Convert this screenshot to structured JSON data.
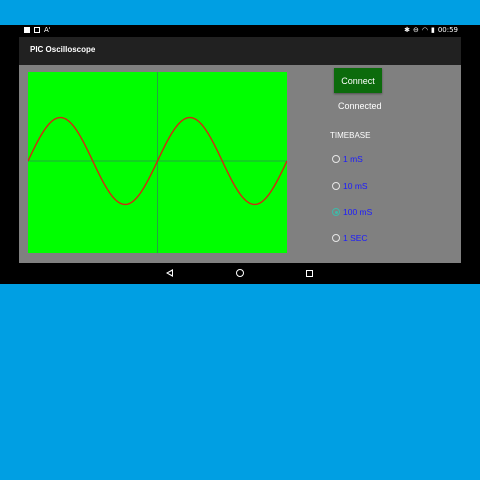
{
  "status_bar": {
    "left_icons": [
      "notification-square-icon",
      "gallery-icon",
      "font-icon"
    ],
    "font_glyph": "A'",
    "right_icons": [
      "signal-icon",
      "data-saver-icon",
      "wifi-icon",
      "battery-icon"
    ],
    "time": "00:59"
  },
  "app_bar": {
    "title": "PIC Oscilloscope"
  },
  "controls": {
    "connect_label": "Connect",
    "connection_status": "Connected",
    "timebase_label": "TIMEBASE",
    "timebase_options": [
      {
        "label": "1 mS",
        "checked": false
      },
      {
        "label": "10 mS",
        "checked": false
      },
      {
        "label": "100 mS",
        "checked": true
      },
      {
        "label": "1 SEC",
        "checked": false
      }
    ]
  },
  "scope": {
    "background_color": "#00ff00",
    "trace_color": "#d12a12",
    "axis_color": "#2e8b57",
    "chart_data": {
      "type": "line",
      "cycles_visible": 2.0,
      "amplitude_fraction_of_half_height": 0.48
    }
  },
  "nav_bar": {
    "icons": [
      "back-icon",
      "home-icon",
      "recents-icon"
    ]
  },
  "colors": {
    "page_background": "#009fe3",
    "content_background": "#808080",
    "button_green": "#0c6b0c",
    "radio_label_blue": "#1a1aff"
  }
}
